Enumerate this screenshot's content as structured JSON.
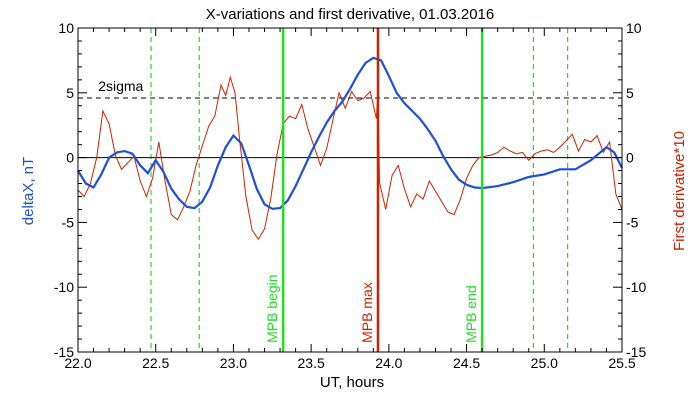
{
  "chart_data": {
    "type": "line",
    "title": "X-variations and first derivative, 01.03.2016",
    "xlabel": "UT, hours",
    "ylabel_left": "deltaX, nT",
    "ylabel_right": "First derivative*10",
    "xlim": [
      22.0,
      25.5
    ],
    "ylim": [
      -15,
      10
    ],
    "x_ticks": [
      "22.0",
      "22.5",
      "23.0",
      "23.5",
      "24.0",
      "24.5",
      "25.0",
      "25.5"
    ],
    "y_ticks": [
      "10",
      "5",
      "0",
      "-5",
      "-10",
      "-15"
    ],
    "sigma_label": "2sigma",
    "sigma_level": 4.6,
    "colors": {
      "deltaX": "#1f4fd6",
      "derivative": "#cc2200",
      "markers": "#22dd22",
      "max_marker": "#cc2200"
    },
    "dashed_markers": [
      22.47,
      22.78,
      24.93,
      25.15
    ],
    "labelled_markers": [
      {
        "label": "MPB begin",
        "x": 23.32,
        "color": "#22dd22"
      },
      {
        "label": "MPB max",
        "x": 23.93,
        "color": "#cc2200"
      },
      {
        "label": "MPB end",
        "x": 24.6,
        "color": "#22dd22"
      }
    ],
    "series": [
      {
        "name": "deltaX",
        "x": [
          22.0,
          22.05,
          22.1,
          22.15,
          22.2,
          22.25,
          22.3,
          22.35,
          22.4,
          22.45,
          22.5,
          22.55,
          22.6,
          22.65,
          22.7,
          22.75,
          22.8,
          22.85,
          22.9,
          22.95,
          23.0,
          23.05,
          23.1,
          23.15,
          23.2,
          23.25,
          23.3,
          23.35,
          23.4,
          23.45,
          23.5,
          23.55,
          23.6,
          23.65,
          23.7,
          23.75,
          23.8,
          23.85,
          23.9,
          23.95,
          24.0,
          24.05,
          24.1,
          24.15,
          24.2,
          24.25,
          24.3,
          24.35,
          24.4,
          24.45,
          24.5,
          24.55,
          24.6,
          24.7,
          24.8,
          24.9,
          25.0,
          25.1,
          25.2,
          25.3,
          25.35,
          25.4,
          25.45,
          25.5
        ],
        "y": [
          -1.0,
          -2.0,
          -2.3,
          -1.3,
          0.0,
          0.4,
          0.5,
          0.3,
          -0.6,
          -1.2,
          -0.2,
          -1.1,
          -2.4,
          -3.2,
          -3.8,
          -3.9,
          -3.4,
          -2.3,
          -0.6,
          0.8,
          1.7,
          1.1,
          -0.6,
          -2.4,
          -3.6,
          -3.95,
          -3.9,
          -3.3,
          -2.2,
          -0.9,
          0.4,
          1.6,
          2.7,
          3.6,
          4.3,
          5.3,
          6.4,
          7.3,
          7.7,
          7.5,
          6.3,
          5.0,
          4.2,
          3.6,
          3.0,
          2.2,
          1.3,
          0.1,
          -0.9,
          -1.7,
          -2.1,
          -2.3,
          -2.35,
          -2.2,
          -1.9,
          -1.5,
          -1.3,
          -0.9,
          -0.9,
          -0.2,
          0.3,
          0.8,
          0.4,
          -0.8
        ]
      },
      {
        "name": "derivative",
        "x": [
          22.0,
          22.04,
          22.08,
          22.12,
          22.16,
          22.2,
          22.24,
          22.28,
          22.32,
          22.36,
          22.4,
          22.44,
          22.48,
          22.52,
          22.56,
          22.6,
          22.64,
          22.68,
          22.72,
          22.76,
          22.8,
          22.84,
          22.88,
          22.92,
          22.95,
          22.98,
          23.01,
          23.04,
          23.08,
          23.12,
          23.16,
          23.2,
          23.24,
          23.28,
          23.32,
          23.36,
          23.4,
          23.44,
          23.48,
          23.52,
          23.56,
          23.6,
          23.64,
          23.68,
          23.72,
          23.76,
          23.8,
          23.84,
          23.88,
          23.92,
          23.93,
          23.94,
          23.98,
          24.02,
          24.06,
          24.1,
          24.14,
          24.18,
          24.22,
          24.26,
          24.3,
          24.34,
          24.38,
          24.42,
          24.46,
          24.5,
          24.54,
          24.58,
          24.62,
          24.66,
          24.7,
          24.74,
          24.78,
          24.82,
          24.86,
          24.9,
          24.94,
          24.98,
          25.02,
          25.06,
          25.1,
          25.14,
          25.18,
          25.22,
          25.26,
          25.3,
          25.34,
          25.38,
          25.42,
          25.46,
          25.5
        ],
        "y": [
          -2.5,
          -3.0,
          -2.0,
          0.0,
          3.6,
          2.6,
          0.2,
          -0.9,
          -0.4,
          0.1,
          -1.8,
          -3.0,
          -1.6,
          1.2,
          -1.8,
          -4.4,
          -4.8,
          -3.8,
          -2.6,
          -0.6,
          0.9,
          2.4,
          3.2,
          5.6,
          4.8,
          6.2,
          5.0,
          1.4,
          -3.0,
          -5.6,
          -6.3,
          -5.5,
          -3.2,
          0.2,
          2.6,
          3.2,
          3.0,
          4.1,
          2.2,
          0.8,
          -0.6,
          0.7,
          2.9,
          5.0,
          3.8,
          5.1,
          4.4,
          4.6,
          5.1,
          3.0,
          5.3,
          -1.9,
          -4.0,
          -1.4,
          -0.6,
          -2.4,
          -3.8,
          -2.8,
          -3.2,
          -1.8,
          -2.6,
          -3.4,
          -4.2,
          -4.4,
          -3.2,
          -1.6,
          -0.6,
          0.0,
          0.1,
          0.2,
          0.4,
          0.8,
          0.5,
          0.3,
          0.4,
          -0.2,
          0.3,
          0.5,
          0.6,
          0.4,
          0.8,
          1.3,
          1.8,
          0.5,
          1.4,
          1.2,
          1.7,
          0.4,
          1.2,
          -2.8,
          -4.0
        ]
      }
    ]
  }
}
